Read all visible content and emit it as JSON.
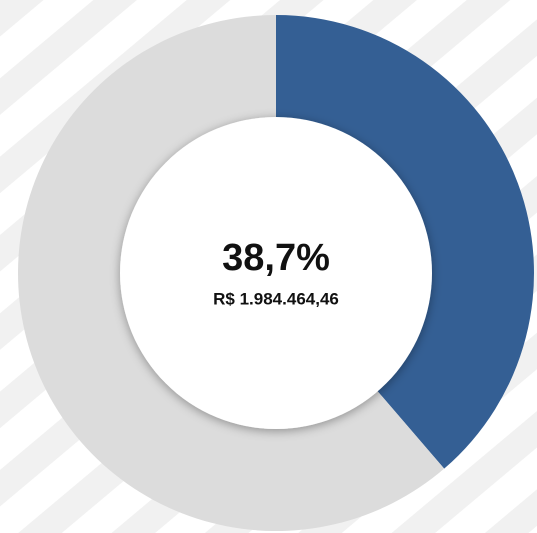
{
  "chart_data": {
    "type": "donut",
    "values": [
      38.7,
      61.3
    ],
    "value_labels": [
      "38,7%",
      null
    ],
    "colors": [
      "#345f94",
      "#dcdcdc"
    ],
    "center_amount": "R$ 1.984.464,46"
  }
}
